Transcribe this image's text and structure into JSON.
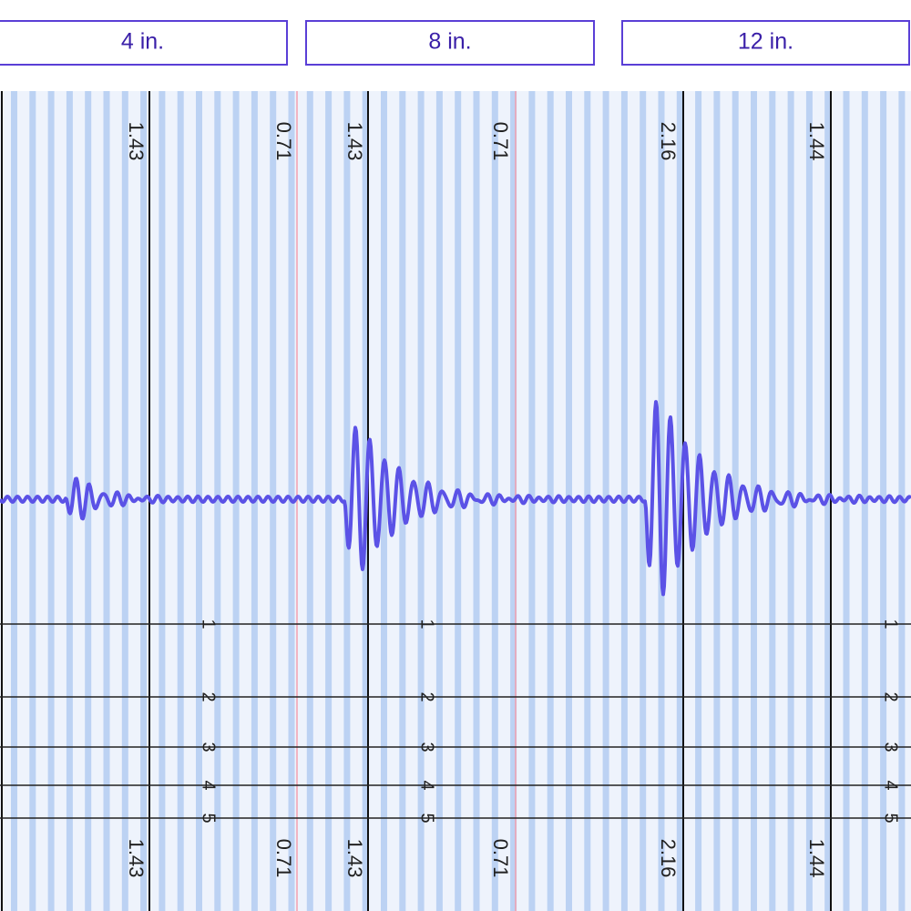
{
  "buttons": [
    "4 in.",
    "8 in.",
    "12 in."
  ],
  "top_labels": [
    "1.43",
    "0.71",
    "1.43",
    "0.71",
    "2.16",
    "1.44"
  ],
  "bottom_labels": [
    "1.43",
    "0.71",
    "1.43",
    "0.71",
    "2.16",
    "1.44"
  ],
  "scales": [
    [
      "1",
      "2",
      "3",
      "4",
      "5"
    ],
    [
      "1",
      "2",
      "3",
      "4",
      "5"
    ],
    [
      "1",
      "2",
      "3",
      "4",
      "5"
    ]
  ]
}
